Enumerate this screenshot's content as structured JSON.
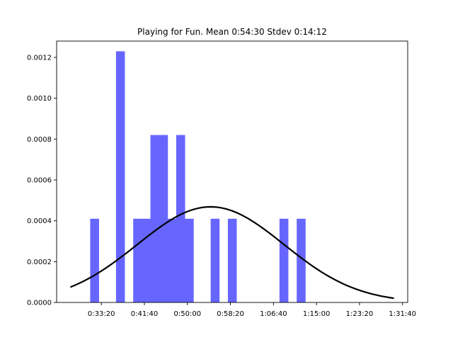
{
  "chart_data": {
    "type": "bar",
    "title": "Playing for Fun. Mean 0:54:30 Stdev 0:14:12",
    "xlabel": "",
    "ylabel": "",
    "x_unit": "seconds",
    "xlim": [
      1480,
      5560
    ],
    "ylim": [
      0,
      0.00128
    ],
    "grid": false,
    "colors": {
      "bars": "#6666ff",
      "curve": "#000000",
      "axes": "#000000"
    },
    "x_ticks": [
      {
        "value": 2000,
        "label": "0:33:20"
      },
      {
        "value": 2500,
        "label": "0:41:40"
      },
      {
        "value": 3000,
        "label": "0:50:00"
      },
      {
        "value": 3500,
        "label": "0:58:20"
      },
      {
        "value": 4000,
        "label": "1:06:40"
      },
      {
        "value": 4500,
        "label": "1:15:00"
      },
      {
        "value": 5000,
        "label": "1:23:20"
      },
      {
        "value": 5500,
        "label": "1:31:40"
      }
    ],
    "y_ticks": [
      {
        "value": 0,
        "label": "0.0000"
      },
      {
        "value": 0.0002,
        "label": "0.0002"
      },
      {
        "value": 0.0004,
        "label": "0.0004"
      },
      {
        "value": 0.0006,
        "label": "0.0006"
      },
      {
        "value": 0.0008,
        "label": "0.0008"
      },
      {
        "value": 0.001,
        "label": "0.0010"
      },
      {
        "value": 0.0012,
        "label": "0.0012"
      }
    ],
    "bars": [
      {
        "x0": 1870,
        "x1": 1970,
        "value": 0.00041
      },
      {
        "x0": 2170,
        "x1": 2270,
        "value": 0.00123
      },
      {
        "x0": 2370,
        "x1": 2470,
        "value": 0.00041
      },
      {
        "x0": 2470,
        "x1": 2570,
        "value": 0.00041
      },
      {
        "x0": 2570,
        "x1": 2670,
        "value": 0.00082
      },
      {
        "x0": 2670,
        "x1": 2770,
        "value": 0.00082
      },
      {
        "x0": 2770,
        "x1": 2870,
        "value": 0.00041
      },
      {
        "x0": 2870,
        "x1": 2970,
        "value": 0.00082
      },
      {
        "x0": 2970,
        "x1": 3070,
        "value": 0.00041
      },
      {
        "x0": 3270,
        "x1": 3370,
        "value": 0.00041
      },
      {
        "x0": 3470,
        "x1": 3570,
        "value": 0.00041
      },
      {
        "x0": 4070,
        "x1": 4170,
        "value": 0.00041
      },
      {
        "x0": 4270,
        "x1": 4370,
        "value": 0.00041
      }
    ],
    "curve": {
      "type": "normal-pdf",
      "mean": 3270,
      "stdev": 852,
      "x_range": [
        1640,
        5400
      ]
    }
  }
}
